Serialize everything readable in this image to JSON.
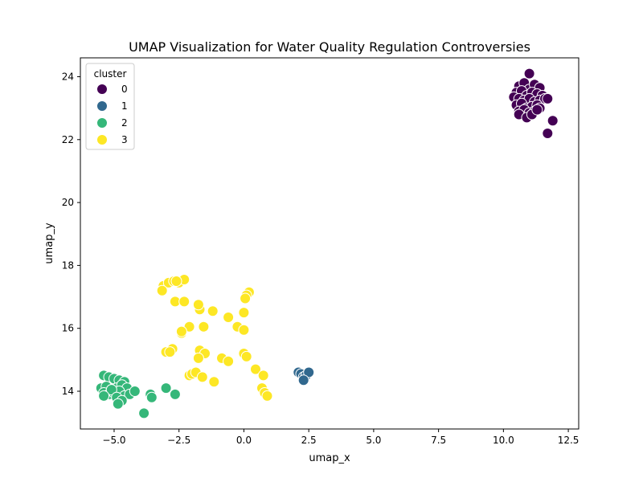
{
  "chart_data": {
    "type": "scatter",
    "title": "UMAP Visualization for Water Quality Regulation Controversies",
    "xlabel": "umap_x",
    "ylabel": "umap_y",
    "xlim": [
      -6.3,
      12.9
    ],
    "ylim": [
      12.8,
      24.6
    ],
    "xticks": [
      -5.0,
      -2.5,
      0.0,
      2.5,
      5.0,
      7.5,
      10.0,
      12.5
    ],
    "xtick_labels": [
      "−5.0",
      "−2.5",
      "0.0",
      "2.5",
      "5.0",
      "7.5",
      "10.0",
      "12.5"
    ],
    "yticks": [
      14,
      16,
      18,
      20,
      22,
      24
    ],
    "ytick_labels": [
      "14",
      "16",
      "18",
      "20",
      "22",
      "24"
    ],
    "grid": false,
    "legend": {
      "title": "cluster",
      "placement": "top-left"
    },
    "series": [
      {
        "name": "0",
        "color": "#440154",
        "x": [
          10.6,
          10.8,
          11.0,
          11.2,
          11.4,
          10.5,
          10.7,
          10.9,
          11.1,
          11.3,
          11.5,
          10.4,
          10.6,
          10.8,
          11.0,
          11.2,
          11.4,
          11.6,
          10.5,
          10.7,
          10.9,
          11.1,
          11.3,
          10.6,
          10.8,
          11.0,
          11.2,
          11.4,
          10.6,
          10.9,
          11.1,
          11.7,
          11.9,
          11.7,
          11.0,
          11.3
        ],
        "y": [
          23.7,
          23.8,
          23.6,
          23.75,
          23.65,
          23.5,
          23.55,
          23.4,
          23.5,
          23.45,
          23.4,
          23.35,
          23.3,
          23.25,
          23.3,
          23.2,
          23.25,
          23.3,
          23.1,
          23.15,
          23.0,
          23.05,
          23.1,
          22.9,
          22.95,
          22.85,
          22.9,
          23.0,
          22.8,
          22.7,
          22.8,
          22.2,
          22.6,
          23.3,
          24.1,
          22.95
        ]
      },
      {
        "name": "1",
        "color": "#31688e",
        "x": [
          2.1,
          2.2,
          2.3,
          2.4,
          2.5,
          2.3
        ],
        "y": [
          14.6,
          14.55,
          14.45,
          14.5,
          14.6,
          14.35
        ]
      },
      {
        "name": "2",
        "color": "#35b779",
        "x": [
          -5.4,
          -5.2,
          -5.0,
          -4.8,
          -4.6,
          -5.5,
          -5.3,
          -5.1,
          -4.9,
          -4.7,
          -4.5,
          -5.4,
          -5.2,
          -5.0,
          -4.8,
          -4.6,
          -4.4,
          -5.1,
          -4.9,
          -4.7,
          -4.2,
          -3.6,
          -3.55,
          -3.85,
          -3.0,
          -2.65,
          -4.85,
          -5.4
        ],
        "y": [
          14.5,
          14.45,
          14.4,
          14.35,
          14.3,
          14.1,
          14.15,
          14.05,
          14.1,
          14.2,
          14.1,
          13.95,
          13.9,
          13.95,
          14.0,
          13.85,
          13.9,
          14.05,
          13.8,
          13.7,
          14.0,
          13.9,
          13.8,
          13.3,
          14.1,
          13.9,
          13.6,
          13.85
        ]
      },
      {
        "name": "3",
        "color": "#fde725",
        "x": [
          -3.1,
          -2.9,
          -2.7,
          -2.5,
          -2.3,
          -3.15,
          -2.6,
          -2.65,
          -2.3,
          -1.7,
          -1.75,
          -1.2,
          -2.1,
          -2.4,
          -1.55,
          -0.6,
          -0.25,
          0.0,
          0.2,
          0.1,
          0.0,
          0.05,
          -2.75,
          -3.0,
          -2.85,
          -1.7,
          -1.5,
          -1.75,
          -0.85,
          -0.6,
          0.0,
          0.1,
          0.45,
          -2.1,
          -2.0,
          -1.85,
          -1.6,
          -1.15,
          0.75,
          0.7,
          0.8,
          0.9,
          -2.4
        ],
        "y": [
          17.35,
          17.45,
          17.5,
          17.45,
          17.55,
          17.2,
          17.5,
          16.85,
          16.85,
          16.6,
          16.75,
          16.55,
          16.05,
          15.85,
          16.05,
          16.35,
          16.05,
          15.95,
          17.15,
          17.05,
          16.5,
          16.95,
          15.35,
          15.25,
          15.25,
          15.3,
          15.2,
          15.05,
          15.05,
          14.95,
          15.2,
          15.1,
          14.7,
          14.5,
          14.55,
          14.6,
          14.45,
          14.3,
          14.5,
          14.1,
          13.95,
          13.85,
          15.9
        ]
      }
    ]
  }
}
